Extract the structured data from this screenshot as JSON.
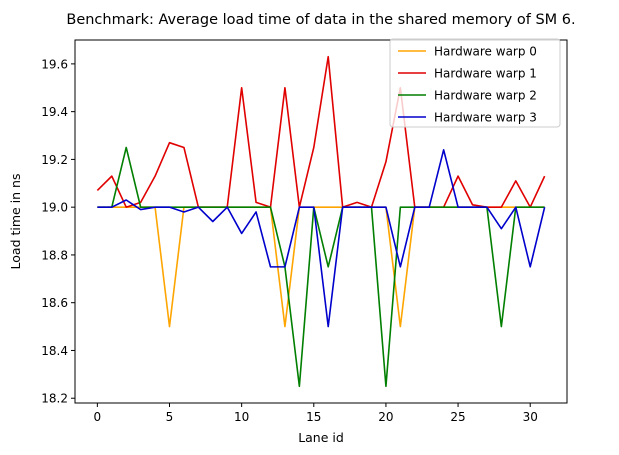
{
  "chart_data": {
    "type": "line",
    "title": "Benchmark: Average load time of data in the shared memory of SM 6.",
    "xlabel": "Lane id",
    "ylabel": "Load time in ns",
    "xlim": [
      -1.55,
      32.55
    ],
    "ylim": [
      18.18,
      19.7
    ],
    "xticks": [
      0,
      5,
      10,
      15,
      20,
      25,
      30
    ],
    "xtick_labels": [
      "0",
      "5",
      "10",
      "15",
      "20",
      "25",
      "30"
    ],
    "yticks": [
      18.2,
      18.4,
      18.6,
      18.8,
      19.0,
      19.2,
      19.4,
      19.6
    ],
    "ytick_labels": [
      "18.2",
      "18.4",
      "18.6",
      "18.8",
      "19.0",
      "19.2",
      "19.4",
      "19.6"
    ],
    "grid": false,
    "legend_position": "top-right",
    "x": [
      0,
      1,
      2,
      3,
      4,
      5,
      6,
      7,
      8,
      9,
      10,
      11,
      12,
      13,
      14,
      15,
      16,
      17,
      18,
      19,
      20,
      21,
      22,
      23,
      24,
      25,
      26,
      27,
      28,
      29,
      30,
      31
    ],
    "series": [
      {
        "name": "Hardware warp 0",
        "color": "#ffa500",
        "values": [
          19.0,
          19.0,
          19.0,
          19.0,
          19.0,
          18.5,
          19.0,
          19.0,
          19.0,
          19.0,
          19.0,
          19.0,
          19.0,
          18.5,
          19.0,
          19.0,
          19.0,
          19.0,
          19.0,
          19.0,
          19.0,
          18.5,
          19.0,
          19.0,
          19.0,
          19.0,
          19.0,
          19.0,
          19.0,
          19.0,
          19.0,
          19.0
        ]
      },
      {
        "name": "Hardware warp 1",
        "color": "#e00000",
        "values": [
          19.07,
          19.13,
          19.0,
          19.02,
          19.13,
          19.27,
          19.25,
          19.0,
          19.0,
          19.0,
          19.5,
          19.02,
          19.0,
          19.5,
          19.0,
          19.25,
          19.63,
          19.0,
          19.02,
          19.0,
          19.19,
          19.5,
          19.0,
          19.0,
          19.0,
          19.13,
          19.01,
          19.0,
          19.0,
          19.11,
          19.0,
          19.13
        ]
      },
      {
        "name": "Hardware warp 2",
        "color": "#007f00",
        "values": [
          19.0,
          19.0,
          19.25,
          19.0,
          19.0,
          19.0,
          19.0,
          19.0,
          19.0,
          19.0,
          19.0,
          19.0,
          19.0,
          18.75,
          18.25,
          19.0,
          18.75,
          19.0,
          19.0,
          19.0,
          18.25,
          19.0,
          19.0,
          19.0,
          19.0,
          19.0,
          19.0,
          19.0,
          18.5,
          19.0,
          19.0,
          19.0
        ]
      },
      {
        "name": "Hardware warp 3",
        "color": "#0000cc",
        "values": [
          19.0,
          19.0,
          19.03,
          18.99,
          19.0,
          19.0,
          18.98,
          19.0,
          18.94,
          19.0,
          18.89,
          18.98,
          18.75,
          18.75,
          19.0,
          19.0,
          18.5,
          19.0,
          19.0,
          19.0,
          19.0,
          18.75,
          19.0,
          19.0,
          19.24,
          19.0,
          19.0,
          19.0,
          18.91,
          19.0,
          18.75,
          19.0
        ]
      }
    ]
  }
}
